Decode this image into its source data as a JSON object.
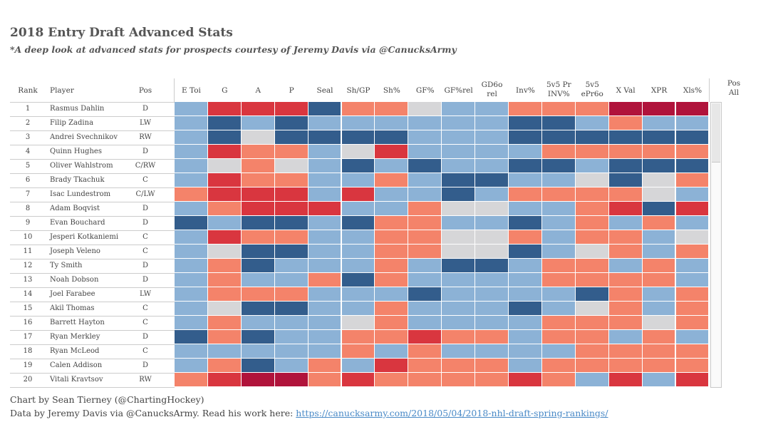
{
  "title": "2018 Entry Draft Advanced Stats",
  "subtitle": "*A deep look at advanced stats for prospects courtesy of Jeremy Davis via @CanucksArmy",
  "footer": {
    "line1": "Chart by Sean Tierney (@ChartingHockey)",
    "line2_prefix": "Data by Jeremy Davis via @CanucksArmy. Read his work here: ",
    "link": "https://canucksarmy.com/2018/05/04/2018-nhl-draft-spring-rankings/"
  },
  "filter": {
    "label": "Pos",
    "value": "All"
  },
  "chart_data": {
    "type": "heatmap",
    "title": "2018 Entry Draft Advanced Stats",
    "row_headers": [
      "Rank",
      "Player",
      "Pos"
    ],
    "columns": [
      "E Toi",
      "G",
      "A",
      "P",
      "Seal",
      "Sh/GP",
      "Sh%",
      "GF%",
      "GF%rel",
      "GD60 rel",
      "Inv%",
      "5v5 Pr INV%",
      "5v5 ePr60",
      "X Val",
      "XPR",
      "XIs%"
    ],
    "column_labels": [
      "E Toi",
      "G",
      "A",
      "P",
      "Seal",
      "Sh/GP",
      "Sh%",
      "GF%",
      "GF%rel",
      "GD6o rel",
      "Inv%",
      "5v5 Pr INV%",
      "5v5 ePr6o",
      "X Val",
      "XPR",
      "Xls%"
    ],
    "color_scale": {
      "min": -3,
      "max": 3,
      "low": "#2c5a8c",
      "mid": "#d2d2d2",
      "high": "#b5163b",
      "note": "relative percentile rank, diverging blue-grey-red"
    },
    "rows": [
      {
        "rank": "1",
        "player": "Rasmus Dahlin",
        "pos": "D",
        "values": [
          -1,
          2,
          2,
          2,
          -2,
          1,
          1,
          0,
          -1,
          -1,
          1,
          1,
          1,
          3,
          3,
          3
        ]
      },
      {
        "rank": "2",
        "player": "Filip Zadina",
        "pos": "LW",
        "values": [
          -1,
          -2,
          -1,
          -2,
          -1,
          -1,
          -1,
          -1,
          -1,
          -1,
          -2,
          -2,
          -1,
          1,
          -1,
          -1
        ]
      },
      {
        "rank": "3",
        "player": "Andrei Svechnikov",
        "pos": "RW",
        "values": [
          -1,
          -2,
          0,
          -2,
          -2,
          -2,
          -2,
          -1,
          -1,
          -1,
          -2,
          -2,
          -2,
          -2,
          -2,
          -2
        ]
      },
      {
        "rank": "4",
        "player": "Quinn Hughes",
        "pos": "D",
        "values": [
          -1,
          2,
          1,
          1,
          -1,
          0,
          2,
          -1,
          -1,
          -1,
          -1,
          1,
          1,
          1,
          1,
          1
        ]
      },
      {
        "rank": "5",
        "player": "Oliver Wahlstrom",
        "pos": "C/RW",
        "values": [
          -1,
          0,
          1,
          0,
          -1,
          -2,
          -1,
          -2,
          -1,
          -1,
          -2,
          -2,
          -1,
          -2,
          -2,
          -2
        ]
      },
      {
        "rank": "6",
        "player": "Brady Tkachuk",
        "pos": "C",
        "values": [
          -1,
          2,
          1,
          1,
          -1,
          -1,
          1,
          -1,
          -2,
          -2,
          -1,
          -1,
          0,
          -2,
          0,
          1
        ]
      },
      {
        "rank": "7",
        "player": "Isac Lundestrom",
        "pos": "C/LW",
        "values": [
          1,
          2,
          2,
          2,
          -1,
          2,
          -1,
          -1,
          -2,
          -1,
          1,
          1,
          1,
          1,
          0,
          -1
        ]
      },
      {
        "rank": "8",
        "player": "Adam Boqvist",
        "pos": "D",
        "values": [
          -1,
          1,
          2,
          2,
          2,
          -1,
          -1,
          1,
          0,
          0,
          -1,
          -1,
          1,
          2,
          -2,
          2
        ]
      },
      {
        "rank": "9",
        "player": "Evan Bouchard",
        "pos": "D",
        "values": [
          -2,
          -1,
          -2,
          -2,
          -1,
          -2,
          1,
          1,
          -1,
          -1,
          -2,
          -1,
          1,
          -1,
          1,
          -1
        ]
      },
      {
        "rank": "10",
        "player": "Jesperi Kotkaniemi",
        "pos": "C",
        "values": [
          -1,
          2,
          1,
          1,
          -1,
          -1,
          1,
          1,
          0,
          0,
          1,
          -1,
          1,
          1,
          -1,
          0
        ]
      },
      {
        "rank": "11",
        "player": "Joseph Veleno",
        "pos": "C",
        "values": [
          -1,
          0,
          -2,
          -2,
          -1,
          -1,
          1,
          1,
          0,
          0,
          -2,
          -1,
          0,
          1,
          -1,
          1
        ]
      },
      {
        "rank": "12",
        "player": "Ty Smith",
        "pos": "D",
        "values": [
          -1,
          1,
          -2,
          -1,
          -1,
          -1,
          1,
          -1,
          -2,
          -2,
          -1,
          1,
          1,
          -1,
          1,
          -1
        ]
      },
      {
        "rank": "13",
        "player": "Noah Dobson",
        "pos": "D",
        "values": [
          -1,
          1,
          -1,
          -1,
          1,
          -2,
          1,
          -1,
          -1,
          -1,
          -1,
          1,
          1,
          1,
          1,
          -1
        ]
      },
      {
        "rank": "14",
        "player": "Joel Farabee",
        "pos": "LW",
        "values": [
          -1,
          1,
          1,
          1,
          -1,
          -1,
          -1,
          -2,
          -1,
          -1,
          -1,
          -1,
          -2,
          1,
          -1,
          1
        ]
      },
      {
        "rank": "15",
        "player": "Akil Thomas",
        "pos": "C",
        "values": [
          -1,
          0,
          -2,
          -2,
          -1,
          -1,
          1,
          -1,
          -1,
          -1,
          -2,
          -1,
          0,
          1,
          -1,
          1
        ]
      },
      {
        "rank": "16",
        "player": "Barrett Hayton",
        "pos": "C",
        "values": [
          -1,
          1,
          -1,
          -1,
          -1,
          0,
          1,
          -1,
          -1,
          -1,
          -1,
          1,
          1,
          1,
          0,
          1
        ]
      },
      {
        "rank": "17",
        "player": "Ryan Merkley",
        "pos": "D",
        "values": [
          -2,
          1,
          -2,
          -1,
          -1,
          1,
          1,
          2,
          1,
          1,
          -1,
          1,
          1,
          -1,
          1,
          -1
        ]
      },
      {
        "rank": "18",
        "player": "Ryan McLeod",
        "pos": "C",
        "values": [
          -1,
          -1,
          -1,
          -1,
          -1,
          1,
          -1,
          1,
          -1,
          -1,
          -1,
          -1,
          1,
          1,
          1,
          1
        ]
      },
      {
        "rank": "19",
        "player": "Calen Addison",
        "pos": "D",
        "values": [
          -1,
          1,
          -2,
          -1,
          1,
          -1,
          2,
          1,
          1,
          1,
          -1,
          1,
          1,
          1,
          1,
          1
        ]
      },
      {
        "rank": "20",
        "player": "Vitali Kravtsov",
        "pos": "RW",
        "values": [
          1,
          2,
          3,
          3,
          1,
          2,
          1,
          1,
          1,
          1,
          2,
          1,
          -1,
          2,
          -1,
          2
        ]
      }
    ]
  }
}
